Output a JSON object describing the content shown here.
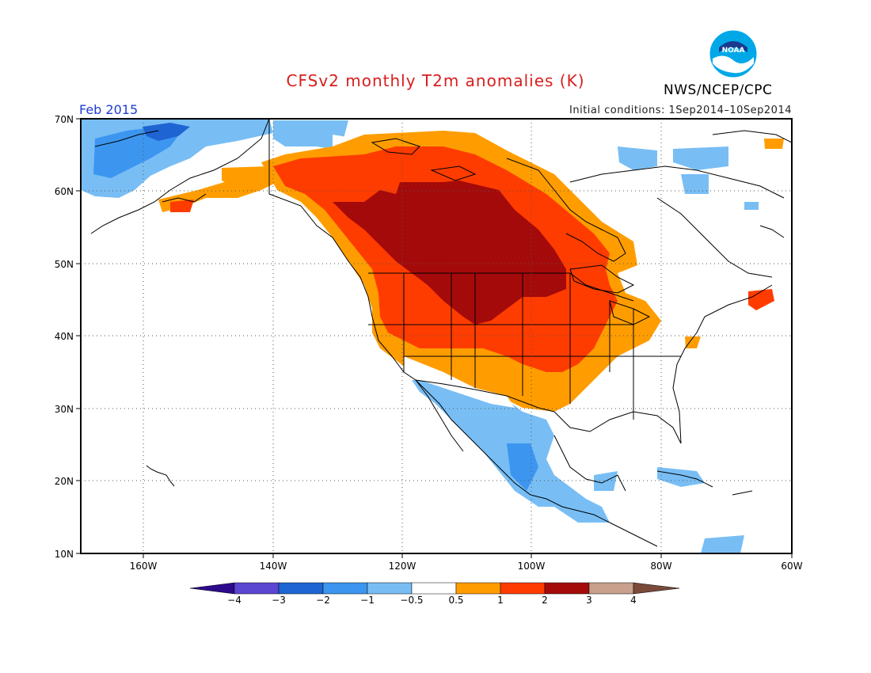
{
  "header": {
    "title": "CFSv2 monthly T2m anomalies (K)",
    "agency": "NWS/NCEP/CPC",
    "logo_text": "NOAA",
    "period": "Feb 2015",
    "initial_conditions": "Initial conditions: 1Sep2014–10Sep2014"
  },
  "axes": {
    "lat_labels": [
      "70N",
      "60N",
      "50N",
      "40N",
      "30N",
      "20N",
      "10N"
    ],
    "lon_labels": [
      "160W",
      "140W",
      "120W",
      "100W",
      "80W",
      "60W"
    ]
  },
  "legend": {
    "tick_labels": [
      "−4",
      "−3",
      "−2",
      "−1",
      "−0.5",
      "0.5",
      "1",
      "2",
      "3",
      "4"
    ],
    "colors": {
      "lt_-4": "#2c0a8c",
      "-4_-3": "#5a46d0",
      "-3_-2": "#1e64d2",
      "-2_-1": "#3c96f0",
      "-1_-0.5": "#78bef5",
      "-0.5_0.5": "#ffffff",
      "0.5_1": "#ff9d00",
      "1_2": "#ff3c00",
      "2_3": "#a50a0a",
      "3_4": "#c8a08c",
      "gt_4": "#7a4a3a"
    }
  },
  "colors": {
    "title": "#d81e1e",
    "period": "#1f3cd6",
    "coast": "#000000",
    "gridline": "#555555"
  }
}
